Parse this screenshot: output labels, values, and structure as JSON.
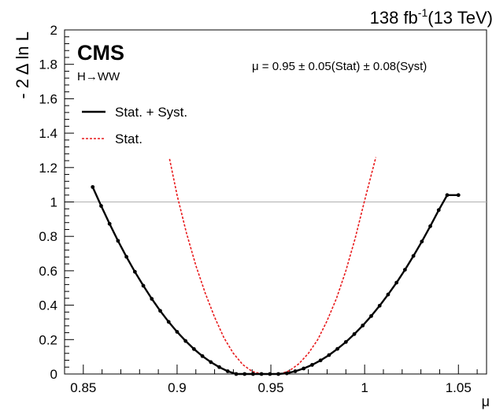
{
  "header": {
    "lumi_value": "138 fb",
    "lumi_exp": "-1",
    "lumi_energy": "(13 TeV)"
  },
  "labels": {
    "experiment": "CMS",
    "process": "H→WW",
    "result": "μ = 0.95 ± 0.05(Stat) ± 0.08(Syst)"
  },
  "chart_data": {
    "type": "line",
    "xlabel": "μ",
    "ylabel": "- 2 Δ ln L",
    "xlim": [
      0.84,
      1.065
    ],
    "ylim": [
      0,
      2
    ],
    "x_ticks": [
      "0.85",
      "0.9",
      "0.95",
      "1",
      "1.05"
    ],
    "x_tick_values": [
      0.85,
      0.9,
      0.95,
      1.0,
      1.05
    ],
    "y_ticks": [
      "0",
      "0.2",
      "0.4",
      "0.6",
      "0.8",
      "1",
      "1.2",
      "1.4",
      "1.6",
      "1.8",
      "2"
    ],
    "y_tick_values": [
      0,
      0.2,
      0.4,
      0.6,
      0.8,
      1.0,
      1.2,
      1.4,
      1.6,
      1.8,
      2.0
    ],
    "reference_line": 1,
    "legend_position": "top-left",
    "series": [
      {
        "name": "Stat. + Syst.",
        "color": "#000000",
        "style": "solid-with-markers",
        "x": [
          0.855,
          0.8595,
          0.864,
          0.8685,
          0.873,
          0.8775,
          0.882,
          0.8865,
          0.891,
          0.8955,
          0.9,
          0.9045,
          0.909,
          0.9135,
          0.918,
          0.9225,
          0.927,
          0.9315,
          0.936,
          0.9405,
          0.945,
          0.9495,
          0.954,
          0.9585,
          0.963,
          0.9675,
          0.972,
          0.9765,
          0.981,
          0.9855,
          0.99,
          0.9945,
          0.999,
          1.0035,
          1.008,
          1.0125,
          1.017,
          1.0215,
          1.026,
          1.0305,
          1.035,
          1.0395,
          1.044,
          1.05
        ],
        "y": [
          1.087,
          0.977,
          0.873,
          0.774,
          0.681,
          0.594,
          0.513,
          0.437,
          0.367,
          0.303,
          0.245,
          0.192,
          0.145,
          0.104,
          0.069,
          0.04,
          0.016,
          0.0,
          0.0,
          0.0,
          0.0,
          0.0,
          0.0,
          0.004,
          0.016,
          0.032,
          0.053,
          0.079,
          0.11,
          0.146,
          0.186,
          0.232,
          0.282,
          0.337,
          0.397,
          0.462,
          0.531,
          0.606,
          0.686,
          0.77,
          0.859,
          0.953,
          1.04,
          1.04
        ]
      },
      {
        "name": "Stat.",
        "color": "#e8191b",
        "style": "dashed",
        "x": [
          0.896,
          0.9,
          0.905,
          0.91,
          0.915,
          0.92,
          0.925,
          0.93,
          0.935,
          0.94,
          0.945,
          0.95,
          0.955,
          0.96,
          0.965,
          0.97,
          0.975,
          0.98,
          0.985,
          0.99,
          0.995,
          1.0,
          1.006
        ],
        "y": [
          1.25,
          1.04,
          0.82,
          0.63,
          0.47,
          0.33,
          0.21,
          0.12,
          0.055,
          0.015,
          0.0,
          0.0,
          0.0,
          0.02,
          0.06,
          0.12,
          0.2,
          0.31,
          0.44,
          0.6,
          0.79,
          1.01,
          1.26
        ]
      }
    ]
  }
}
